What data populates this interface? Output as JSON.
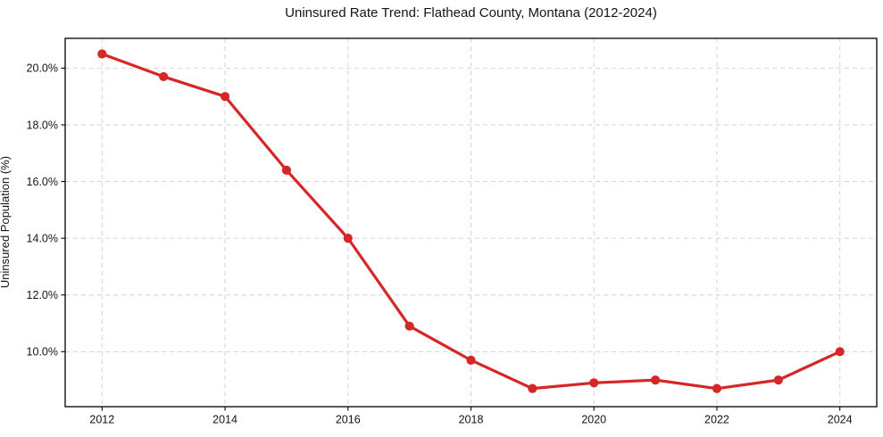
{
  "figure": {
    "background": "#ffffff"
  },
  "chart_data": {
    "type": "line",
    "title": "Uninsured Rate Trend: Flathead County, Montana (2012-2024)",
    "xlabel": "",
    "ylabel": "Uninsured Population (%)",
    "x": [
      2012,
      2013,
      2014,
      2015,
      2016,
      2017,
      2018,
      2019,
      2020,
      2021,
      2022,
      2023,
      2024
    ],
    "y": [
      20.5,
      19.7,
      19.0,
      16.4,
      14.0,
      10.9,
      9.7,
      8.7,
      8.9,
      9.0,
      8.7,
      9.0,
      10.0
    ],
    "x_ticks": [
      2012,
      2014,
      2016,
      2018,
      2020,
      2022,
      2024
    ],
    "x_tick_labels": [
      "2012",
      "2014",
      "2016",
      "2018",
      "2020",
      "2022",
      "2024"
    ],
    "y_ticks": [
      10,
      12,
      14,
      16,
      18,
      20
    ],
    "y_tick_labels": [
      "10.0%",
      "12.0%",
      "14.0%",
      "16.0%",
      "18.0%",
      "20.0%"
    ],
    "xlim": [
      2011.4,
      2024.6
    ],
    "ylim": [
      8.06,
      21.05
    ],
    "grid": true,
    "grid_style": "dashed",
    "legend": false,
    "colors": {
      "line": "#d62728",
      "marker": "#d62728",
      "grid": "#d3d3d3",
      "axis": "#000000",
      "text": "#151515"
    }
  }
}
